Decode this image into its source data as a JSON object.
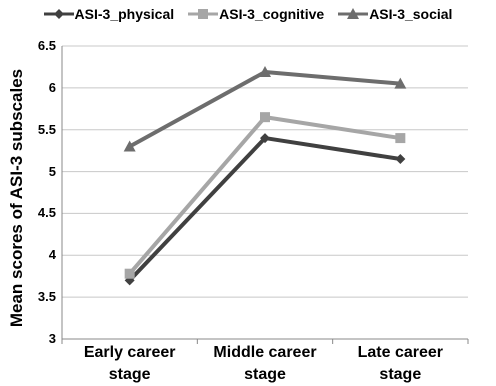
{
  "chart_data": {
    "type": "line",
    "title": "",
    "xlabel": "",
    "ylabel": "Mean scores of ASI-3 subscales",
    "categories": [
      "Early career stage",
      "Middle career stage",
      "Late career stage"
    ],
    "category_lines": [
      [
        "Early career",
        "stage"
      ],
      [
        "Middle career",
        "stage"
      ],
      [
        "Late career",
        "stage"
      ]
    ],
    "ylim": [
      3,
      6.5
    ],
    "yticks": [
      "3",
      "3.5",
      "4",
      "4.5",
      "5",
      "5.5",
      "6",
      "6.5"
    ],
    "grid": true,
    "legend_position": "top",
    "series": [
      {
        "name": "ASI-3_physical",
        "values": [
          3.7,
          5.4,
          5.15
        ],
        "color": "#404040",
        "marker": "diamond"
      },
      {
        "name": "ASI-3_cognitive",
        "values": [
          3.78,
          5.65,
          5.4
        ],
        "color": "#a6a6a6",
        "marker": "square"
      },
      {
        "name": "ASI-3_social",
        "values": [
          5.3,
          6.19,
          6.05
        ],
        "color": "#6d6d6d",
        "marker": "triangle"
      }
    ]
  }
}
